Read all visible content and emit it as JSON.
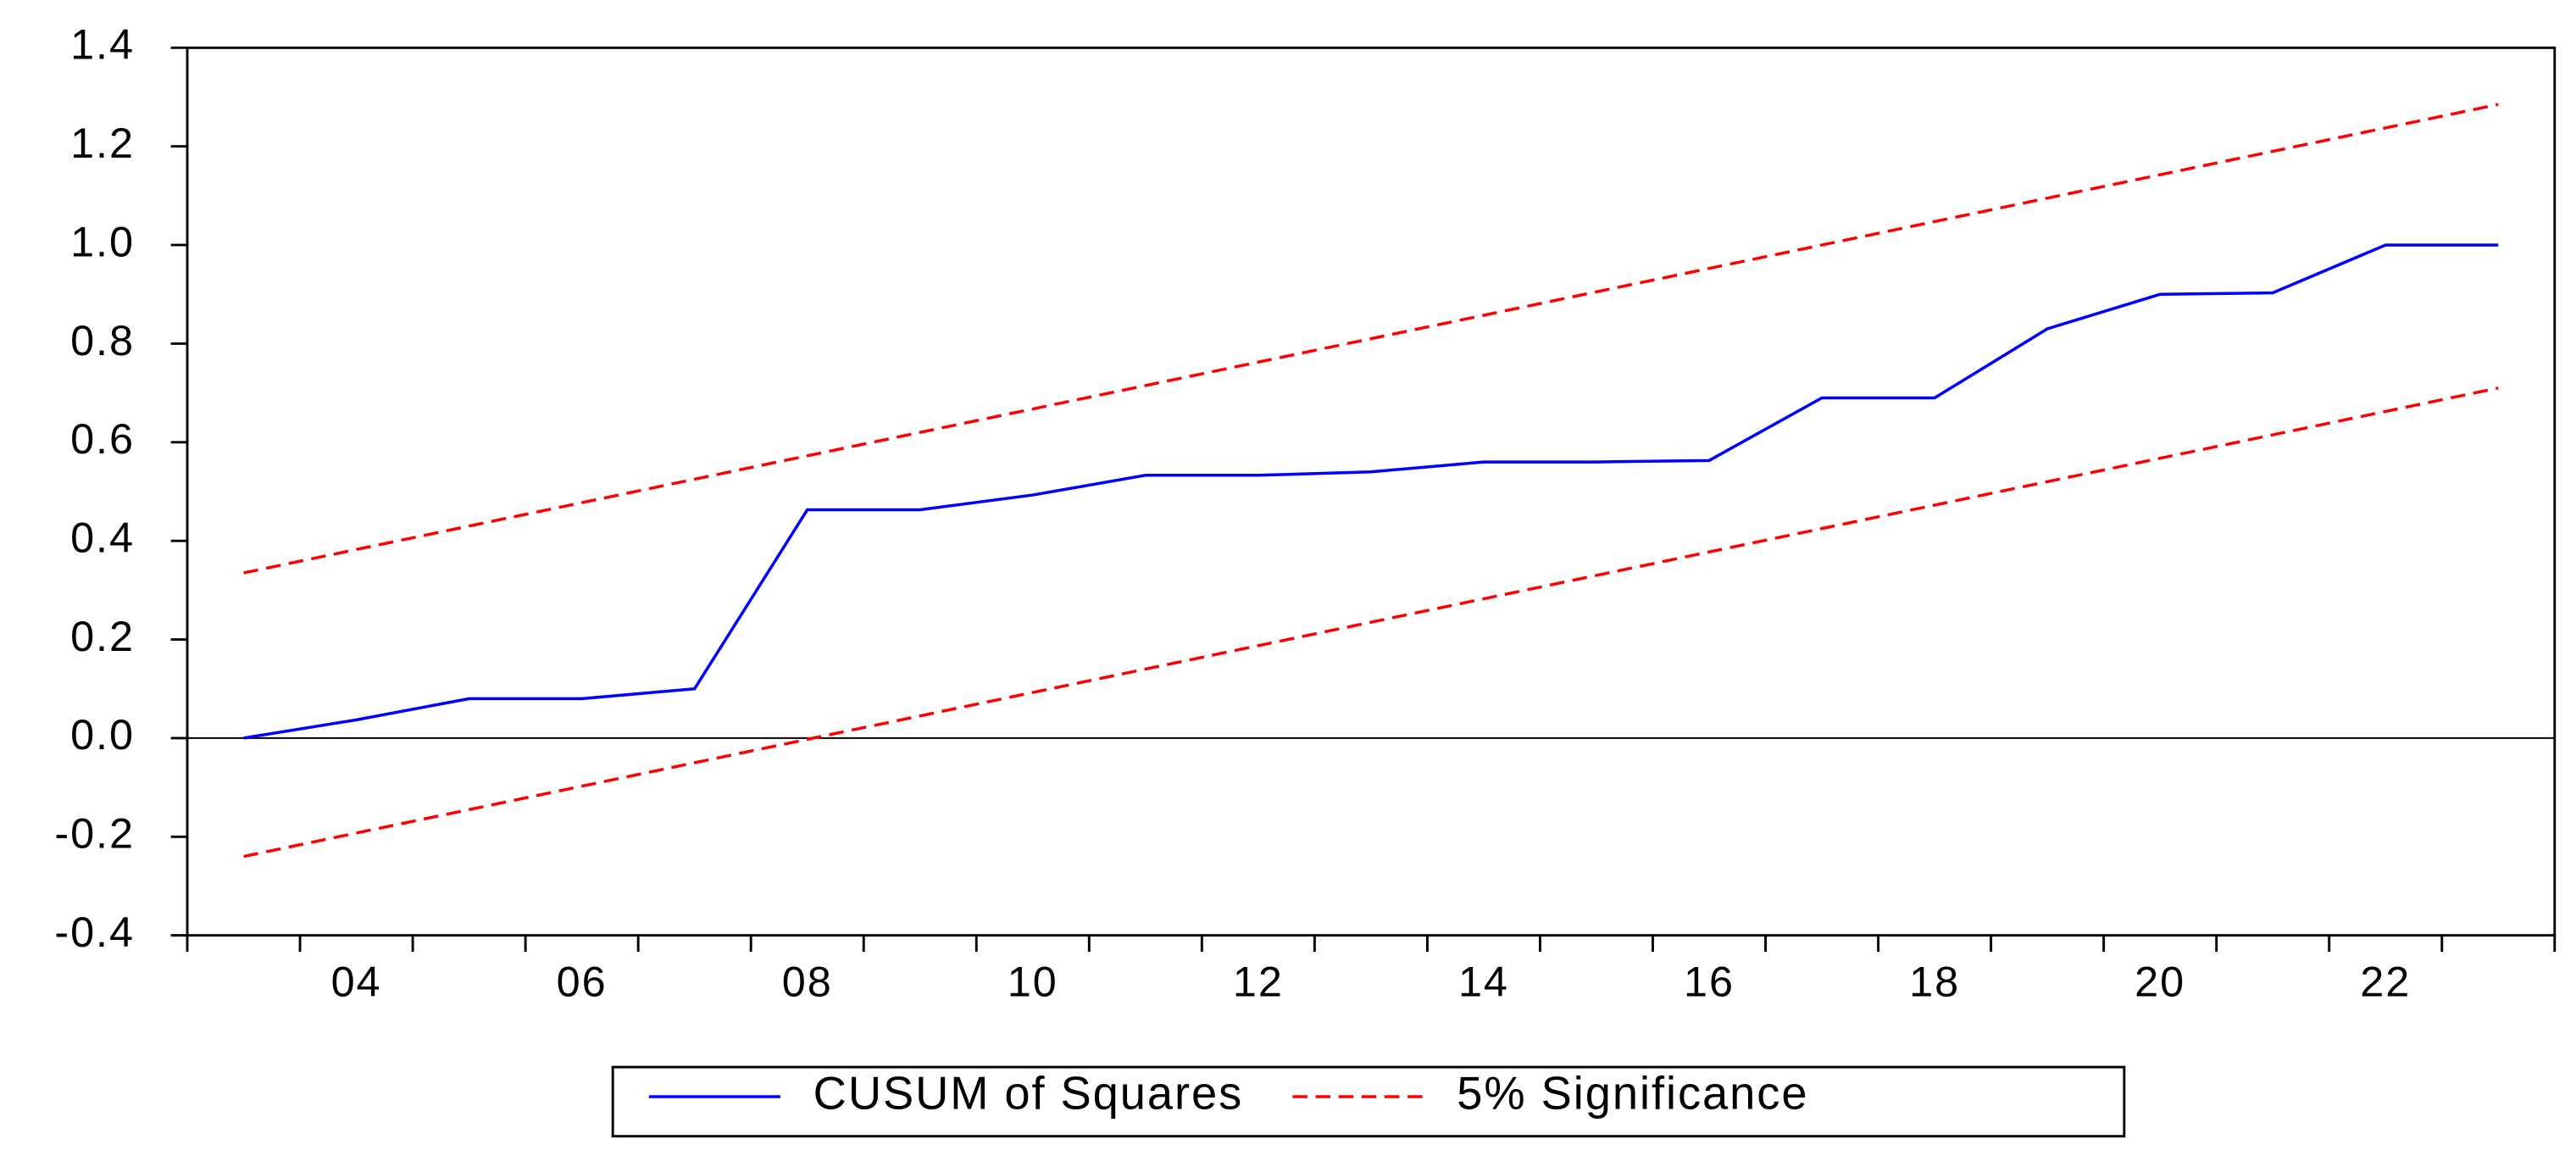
{
  "chart_data": {
    "type": "line",
    "categories": [
      null,
      "04",
      null,
      "06",
      null,
      "08",
      null,
      "10",
      null,
      "12",
      null,
      "14",
      null,
      "16",
      null,
      "18",
      null,
      "20",
      null,
      "22",
      null
    ],
    "series": [
      {
        "name": "CUSUM of Squares",
        "color": "#0000ff",
        "dash": false,
        "values": [
          0.0,
          0.037,
          0.08,
          0.08,
          0.1,
          0.463,
          0.463,
          0.493,
          0.533,
          0.533,
          0.54,
          0.56,
          0.56,
          0.563,
          0.69,
          0.69,
          0.83,
          0.9,
          0.903,
          1.0,
          1.0
        ]
      },
      {
        "name": "5% Significance",
        "color": "#ff0000",
        "dash": true,
        "values": [
          0.335,
          0.3825,
          0.43,
          0.4775,
          0.525,
          0.5725,
          0.62,
          0.6675,
          0.715,
          0.7625,
          0.81,
          0.8575,
          0.905,
          0.9525,
          1.0,
          1.0475,
          1.095,
          1.1425,
          1.19,
          1.2375,
          1.285
        ]
      },
      {
        "name": "5% Significance",
        "color": "#ff0000",
        "dash": true,
        "values": [
          -0.24,
          -0.1925,
          -0.145,
          -0.0975,
          -0.05,
          -0.0025,
          0.045,
          0.0925,
          0.14,
          0.1875,
          0.235,
          0.2825,
          0.33,
          0.3775,
          0.425,
          0.4725,
          0.52,
          0.5675,
          0.615,
          0.6625,
          0.71
        ]
      }
    ],
    "ylim": [
      -0.4,
      1.4
    ],
    "yticks": [
      {
        "value": -0.4,
        "label": "-0.4"
      },
      {
        "value": -0.2,
        "label": "-0.2"
      },
      {
        "value": 0,
        "label": "0.0"
      },
      0.2,
      0.4,
      0.6,
      0.8,
      {
        "value": 1,
        "label": "1.0"
      },
      1.2,
      1.4
    ],
    "zero_line": true,
    "grid": false,
    "legend": "bottom"
  }
}
